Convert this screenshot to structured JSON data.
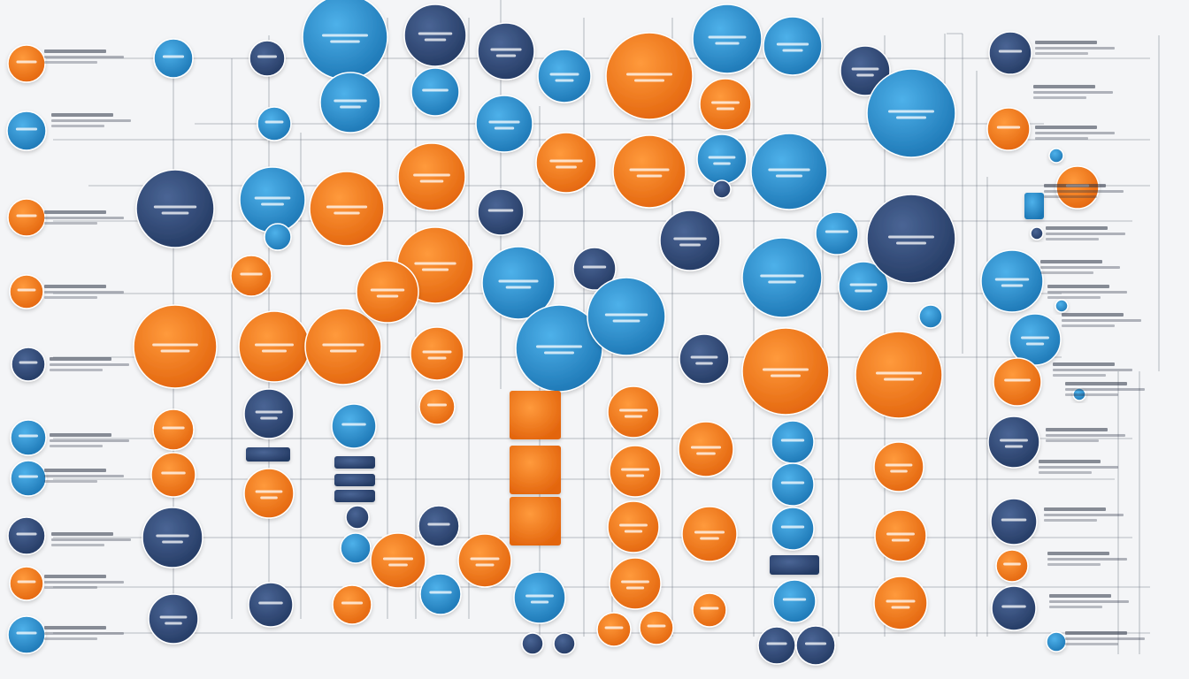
{
  "colors": {
    "orange": "#f07a1c",
    "blue": "#2a8fd0",
    "navy": "#2f4a78",
    "connector": "#6b7280",
    "background": "#f4f5f7"
  },
  "diagram": {
    "type": "network-of-circular-nodes",
    "node_labels_legible": false,
    "side_labels_legible": false,
    "node_style": "glossy circles with thin outline, connected by orthogonal grey lines",
    "node_color_groups": [
      "orange",
      "blue",
      "navy"
    ]
  }
}
